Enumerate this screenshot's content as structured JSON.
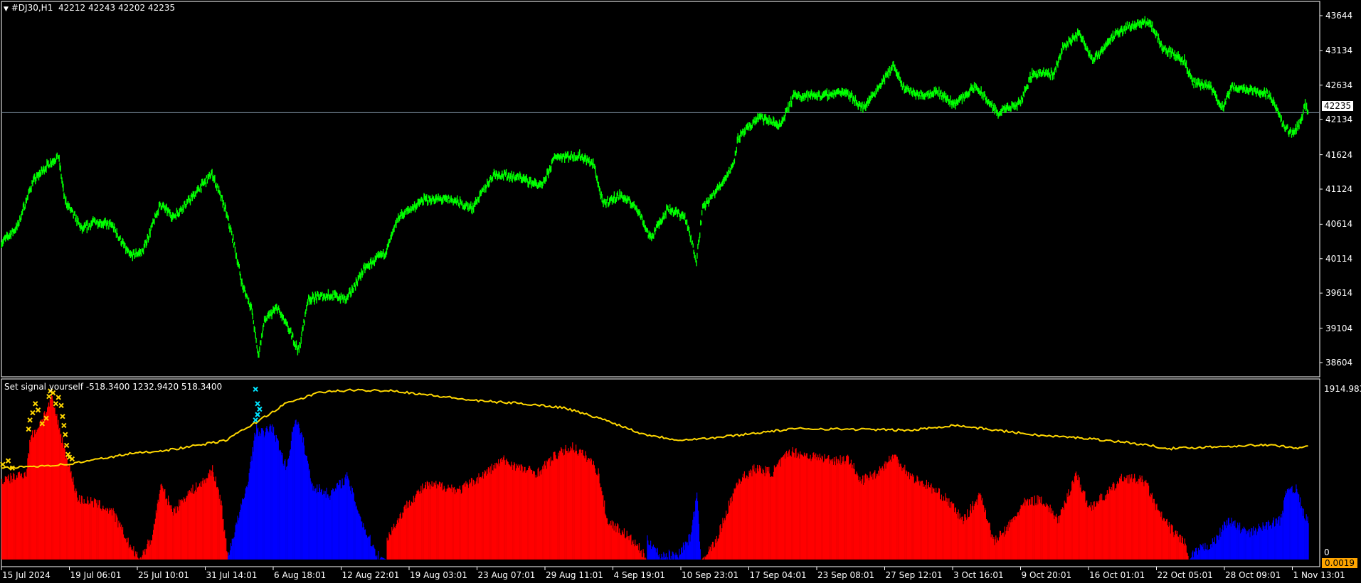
{
  "header": {
    "symbol_text": "#DJ30,H1",
    "ohlc_text": "42212 42243 42202 42235"
  },
  "indicator": {
    "label": "Set signal yourself -518.3400 1232.9420 518.3400",
    "current_value_tag": "0.0019"
  },
  "current_price_tag": "42235",
  "colors": {
    "background": "#000000",
    "price_line": "#00ff00",
    "bid_line": "#778899",
    "hist_bull": "#0000ff",
    "hist_bear": "#ff0000",
    "signal_line": "#ffd700",
    "marker_yellow": "#ffd700",
    "marker_cyan": "#00e5ff",
    "tag_orange": "#ffa500"
  },
  "chart_data": [
    {
      "type": "line",
      "timeframe": "H1",
      "ylim": [
        38604,
        43644
      ],
      "y_ticks": [
        "43644",
        "43134",
        "42634",
        "42134",
        "41624",
        "41124",
        "40614",
        "40114",
        "39614",
        "39104",
        "38604"
      ],
      "x_ticks": [
        "15 Jul 2024",
        "19 Jul 06:01",
        "25 Jul 10:01",
        "31 Jul 14:01",
        "6 Aug 18:01",
        "12 Aug 22:01",
        "19 Aug 03:01",
        "23 Aug 07:01",
        "29 Aug 11:01",
        "4 Sep 19:01",
        "10 Sep 23:01",
        "17 Sep 04:01",
        "23 Sep 08:01",
        "27 Sep 12:01",
        "3 Oct 16:01",
        "9 Oct 20:01",
        "16 Oct 01:01",
        "22 Oct 05:01",
        "28 Oct 09:01",
        "1 Nov 13:01"
      ],
      "last_price": 42235,
      "points": [
        [
          0,
          40343
        ],
        [
          23,
          40570
        ],
        [
          46,
          41225
        ],
        [
          68,
          41477
        ],
        [
          84,
          41603
        ],
        [
          93,
          40973
        ],
        [
          119,
          40532
        ],
        [
          138,
          40658
        ],
        [
          163,
          40595
        ],
        [
          189,
          40154
        ],
        [
          208,
          40217
        ],
        [
          234,
          40910
        ],
        [
          253,
          40721
        ],
        [
          278,
          40973
        ],
        [
          310,
          41351
        ],
        [
          329,
          40847
        ],
        [
          342,
          40343
        ],
        [
          355,
          39713
        ],
        [
          368,
          39398
        ],
        [
          378,
          38705
        ],
        [
          387,
          39209
        ],
        [
          406,
          39398
        ],
        [
          423,
          39083
        ],
        [
          438,
          38768
        ],
        [
          451,
          39524
        ],
        [
          483,
          39587
        ],
        [
          508,
          39524
        ],
        [
          534,
          39965
        ],
        [
          566,
          40217
        ],
        [
          585,
          40721
        ],
        [
          623,
          40973
        ],
        [
          662,
          40973
        ],
        [
          693,
          40847
        ],
        [
          725,
          41351
        ],
        [
          764,
          41288
        ],
        [
          796,
          41162
        ],
        [
          815,
          41603
        ],
        [
          853,
          41603
        ],
        [
          872,
          41477
        ],
        [
          885,
          40910
        ],
        [
          911,
          41036
        ],
        [
          936,
          40847
        ],
        [
          955,
          40406
        ],
        [
          981,
          40847
        ],
        [
          1006,
          40721
        ],
        [
          1023,
          40091
        ],
        [
          1032,
          40847
        ],
        [
          1057,
          41162
        ],
        [
          1077,
          41477
        ],
        [
          1084,
          41855
        ],
        [
          1115,
          42170
        ],
        [
          1147,
          42044
        ],
        [
          1166,
          42485
        ],
        [
          1211,
          42485
        ],
        [
          1243,
          42548
        ],
        [
          1268,
          42296
        ],
        [
          1287,
          42548
        ],
        [
          1313,
          42926
        ],
        [
          1326,
          42611
        ],
        [
          1351,
          42485
        ],
        [
          1377,
          42548
        ],
        [
          1402,
          42359
        ],
        [
          1434,
          42611
        ],
        [
          1466,
          42233
        ],
        [
          1498,
          42359
        ],
        [
          1517,
          42800
        ],
        [
          1549,
          42800
        ],
        [
          1562,
          43178
        ],
        [
          1587,
          43392
        ],
        [
          1607,
          42989
        ],
        [
          1632,
          43304
        ],
        [
          1658,
          43493
        ],
        [
          1690,
          43556
        ],
        [
          1709,
          43178
        ],
        [
          1741,
          42989
        ],
        [
          1753,
          42674
        ],
        [
          1779,
          42611
        ],
        [
          1798,
          42296
        ],
        [
          1811,
          42611
        ],
        [
          1849,
          42548
        ],
        [
          1868,
          42485
        ],
        [
          1887,
          42044
        ],
        [
          1899,
          41918
        ],
        [
          1913,
          42107
        ],
        [
          1919,
          42391
        ],
        [
          1923,
          42235
        ]
      ]
    },
    {
      "type": "bar",
      "ylim": [
        0,
        1914.983
      ],
      "y_ticks": [
        "1914.983",
        "0"
      ],
      "histogram_segments": [
        {
          "color": "red",
          "points": [
            [
              0,
              862
            ],
            [
              36,
              958
            ],
            [
              42,
              1340
            ],
            [
              55,
              1484
            ],
            [
              74,
              1771
            ],
            [
              93,
              1197
            ],
            [
              112,
              670
            ],
            [
              138,
              622
            ],
            [
              163,
              526
            ],
            [
              189,
              144
            ],
            [
              202,
              0
            ],
            [
              221,
              239
            ],
            [
              234,
              813
            ],
            [
              253,
              526
            ],
            [
              272,
              718
            ],
            [
              298,
              862
            ],
            [
              310,
              1005
            ],
            [
              323,
              622
            ],
            [
              332,
              48
            ]
          ]
        },
        {
          "color": "blue",
          "points": [
            [
              333,
              48
            ],
            [
              361,
              813
            ],
            [
              374,
              1436
            ],
            [
              387,
              1388
            ],
            [
              396,
              1484
            ],
            [
              406,
              1292
            ],
            [
              419,
              1005
            ],
            [
              432,
              1580
            ],
            [
              444,
              1292
            ],
            [
              457,
              813
            ],
            [
              483,
              718
            ],
            [
              508,
              910
            ],
            [
              521,
              622
            ],
            [
              534,
              335
            ],
            [
              553,
              48
            ],
            [
              566,
              0
            ]
          ]
        },
        {
          "color": "red",
          "points": [
            [
              567,
              239
            ],
            [
              598,
              622
            ],
            [
              623,
              813
            ],
            [
              649,
              813
            ],
            [
              674,
              766
            ],
            [
              713,
              958
            ],
            [
              738,
              1101
            ],
            [
              764,
              1005
            ],
            [
              789,
              958
            ],
            [
              815,
              1149
            ],
            [
              840,
              1245
            ],
            [
              866,
              1101
            ],
            [
              878,
              958
            ],
            [
              891,
              431
            ],
            [
              917,
              287
            ],
            [
              936,
              144
            ],
            [
              949,
              0
            ]
          ]
        },
        {
          "color": "blue",
          "points": [
            [
              950,
              239
            ],
            [
              968,
              48
            ],
            [
              994,
              48
            ],
            [
              1013,
              239
            ],
            [
              1023,
              718
            ],
            [
              1029,
              0
            ]
          ]
        },
        {
          "color": "red",
          "points": [
            [
              1030,
              0
            ],
            [
              1051,
              192
            ],
            [
              1083,
              862
            ],
            [
              1109,
              1005
            ],
            [
              1134,
              958
            ],
            [
              1160,
              1197
            ],
            [
              1185,
              1149
            ],
            [
              1224,
              1101
            ],
            [
              1249,
              1101
            ],
            [
              1262,
              862
            ],
            [
              1288,
              958
            ],
            [
              1313,
              1149
            ],
            [
              1339,
              910
            ],
            [
              1364,
              813
            ],
            [
              1390,
              670
            ],
            [
              1415,
              431
            ],
            [
              1441,
              718
            ],
            [
              1460,
              192
            ],
            [
              1479,
              335
            ],
            [
              1505,
              622
            ],
            [
              1530,
              670
            ],
            [
              1556,
              431
            ],
            [
              1581,
              958
            ],
            [
              1600,
              574
            ],
            [
              1626,
              718
            ],
            [
              1651,
              910
            ],
            [
              1683,
              862
            ],
            [
              1702,
              526
            ],
            [
              1721,
              335
            ],
            [
              1741,
              192
            ],
            [
              1747,
              0
            ]
          ]
        },
        {
          "color": "blue",
          "points": [
            [
              1748,
              0
            ],
            [
              1760,
              96
            ],
            [
              1785,
              192
            ],
            [
              1804,
              431
            ],
            [
              1836,
              287
            ],
            [
              1862,
              383
            ],
            [
              1881,
              431
            ],
            [
              1894,
              813
            ],
            [
              1906,
              766
            ],
            [
              1917,
              479
            ],
            [
              1923,
              431
            ]
          ]
        }
      ],
      "signal_line": [
        [
          0,
          1005
        ],
        [
          36,
          1025
        ],
        [
          100,
          1053
        ],
        [
          189,
          1168
        ],
        [
          253,
          1216
        ],
        [
          329,
          1312
        ],
        [
          368,
          1484
        ],
        [
          419,
          1724
        ],
        [
          470,
          1848
        ],
        [
          508,
          1867
        ],
        [
          572,
          1867
        ],
        [
          636,
          1810
        ],
        [
          700,
          1752
        ],
        [
          764,
          1724
        ],
        [
          828,
          1676
        ],
        [
          892,
          1532
        ],
        [
          943,
          1388
        ],
        [
          994,
          1321
        ],
        [
          1045,
          1340
        ],
        [
          1122,
          1407
        ],
        [
          1173,
          1446
        ],
        [
          1275,
          1436
        ],
        [
          1339,
          1426
        ],
        [
          1402,
          1484
        ],
        [
          1466,
          1426
        ],
        [
          1530,
          1369
        ],
        [
          1594,
          1340
        ],
        [
          1658,
          1292
        ],
        [
          1721,
          1225
        ],
        [
          1785,
          1245
        ],
        [
          1849,
          1264
        ],
        [
          1887,
          1254
        ],
        [
          1904,
          1225
        ],
        [
          1923,
          1264
        ]
      ],
      "markers_yellow": [
        [
          2,
          1050
        ],
        [
          10,
          1090
        ],
        [
          16,
          1010
        ],
        [
          40,
          1440
        ],
        [
          42,
          1540
        ],
        [
          46,
          1620
        ],
        [
          50,
          1720
        ],
        [
          54,
          1650
        ],
        [
          60,
          1500
        ],
        [
          66,
          1560
        ],
        [
          70,
          1800
        ],
        [
          72,
          1860
        ],
        [
          76,
          1840
        ],
        [
          80,
          1720
        ],
        [
          84,
          1790
        ],
        [
          88,
          1700
        ],
        [
          90,
          1580
        ],
        [
          92,
          1480
        ],
        [
          94,
          1380
        ],
        [
          96,
          1260
        ],
        [
          98,
          1160
        ],
        [
          100,
          1130
        ],
        [
          104,
          1110
        ]
      ],
      "markers_cyan": [
        [
          374,
          1880
        ],
        [
          377,
          1720
        ],
        [
          380,
          1660
        ],
        [
          377,
          1600
        ],
        [
          374,
          1540
        ]
      ]
    }
  ]
}
